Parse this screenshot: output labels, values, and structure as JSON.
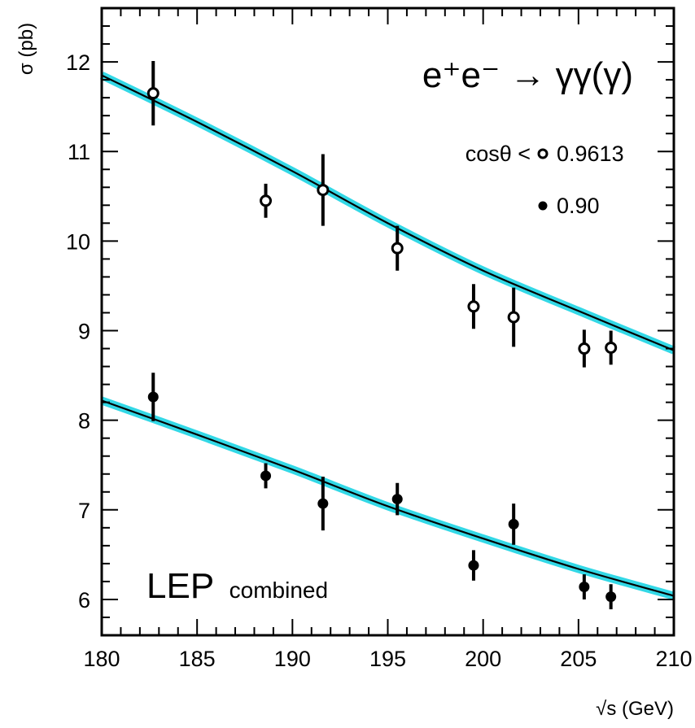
{
  "chart_data": {
    "type": "scatter",
    "title": "",
    "xlabel": "√s (GeV)",
    "ylabel": "σ (pb)",
    "xlim": [
      180,
      210
    ],
    "ylim": [
      5.6,
      12.6
    ],
    "x_ticks": [
      "180",
      "185",
      "190",
      "195",
      "200",
      "205",
      "210"
    ],
    "y_ticks": [
      "6",
      "7",
      "8",
      "9",
      "10",
      "11",
      "12"
    ],
    "grid": false,
    "legend_position": "top-right",
    "legend_title": "cosθ <",
    "annotations": {
      "process": "e⁺e⁻ → γγ(γ)",
      "experiment": "LEP",
      "experiment_sub": "combined"
    },
    "series": [
      {
        "name": "0.9613",
        "marker": "open-circle",
        "points": [
          {
            "x": 182.7,
            "y": 11.65,
            "err": 0.36
          },
          {
            "x": 188.6,
            "y": 10.45,
            "err": 0.19
          },
          {
            "x": 191.6,
            "y": 10.57,
            "err": 0.4
          },
          {
            "x": 195.5,
            "y": 9.92,
            "err": 0.25
          },
          {
            "x": 199.5,
            "y": 9.27,
            "err": 0.25
          },
          {
            "x": 201.6,
            "y": 9.15,
            "err": 0.33
          },
          {
            "x": 205.3,
            "y": 8.8,
            "err": 0.21
          },
          {
            "x": 206.7,
            "y": 8.81,
            "err": 0.19
          }
        ],
        "theory": [
          {
            "x": 180,
            "y": 11.85
          },
          {
            "x": 185,
            "y": 11.33
          },
          {
            "x": 190,
            "y": 10.78
          },
          {
            "x": 195,
            "y": 10.2
          },
          {
            "x": 200,
            "y": 9.67
          },
          {
            "x": 205,
            "y": 9.22
          },
          {
            "x": 210,
            "y": 8.78
          }
        ]
      },
      {
        "name": "0.90",
        "marker": "filled-circle",
        "points": [
          {
            "x": 182.7,
            "y": 8.26,
            "err": 0.27
          },
          {
            "x": 188.6,
            "y": 7.38,
            "err": 0.14
          },
          {
            "x": 191.6,
            "y": 7.07,
            "err": 0.3
          },
          {
            "x": 195.5,
            "y": 7.12,
            "err": 0.18
          },
          {
            "x": 199.5,
            "y": 6.38,
            "err": 0.17
          },
          {
            "x": 201.6,
            "y": 6.84,
            "err": 0.23
          },
          {
            "x": 205.3,
            "y": 6.14,
            "err": 0.14
          },
          {
            "x": 206.7,
            "y": 6.03,
            "err": 0.14
          }
        ],
        "theory": [
          {
            "x": 180,
            "y": 8.22
          },
          {
            "x": 185,
            "y": 7.84
          },
          {
            "x": 190,
            "y": 7.45
          },
          {
            "x": 195,
            "y": 7.04
          },
          {
            "x": 200,
            "y": 6.68
          },
          {
            "x": 205,
            "y": 6.34
          },
          {
            "x": 210,
            "y": 6.04
          }
        ]
      }
    ],
    "colors": {
      "band": "#33d8e6",
      "curve": "#000000",
      "frame": "#000000",
      "marker": "#000000"
    }
  }
}
